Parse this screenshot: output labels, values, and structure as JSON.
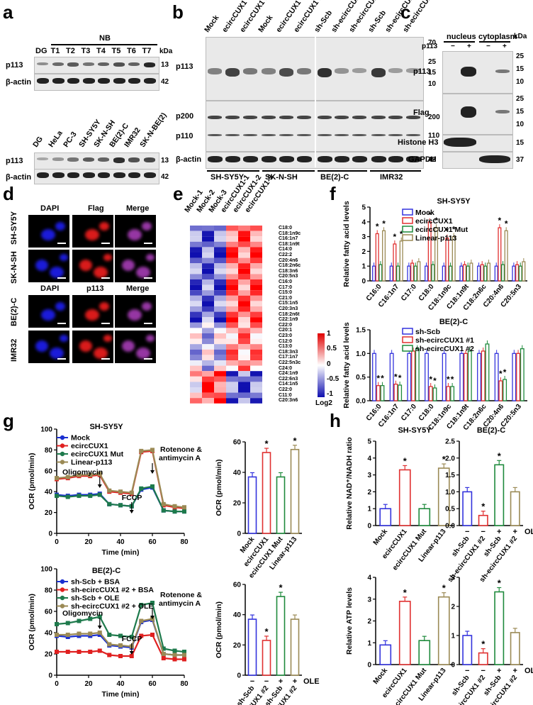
{
  "panels": {
    "a": {
      "label": "a",
      "top": {
        "group_label": "NB",
        "lanes": [
          "DG",
          "T1",
          "T2",
          "T3",
          "T4",
          "T5",
          "T6",
          "T7"
        ],
        "kda_unit": "kDa",
        "rows": [
          {
            "name": "p113",
            "kda": "13"
          },
          {
            "name": "β-actin",
            "kda": "42"
          }
        ],
        "p113_levels": [
          0.35,
          0.55,
          0.65,
          0.5,
          0.6,
          0.7,
          0.6,
          0.95
        ]
      },
      "bottom": {
        "lanes": [
          "DG",
          "HeLa",
          "PC-3",
          "SH-SY5Y",
          "SK-N-SH",
          "BE(2)-C",
          "IMR32",
          "SK-N-BE(2)"
        ],
        "rows": [
          {
            "name": "p113",
            "kda": "13"
          },
          {
            "name": "β-actin",
            "kda": "42"
          }
        ],
        "p113_levels": [
          0.2,
          0.3,
          0.5,
          0.65,
          0.6,
          0.9,
          0.7,
          0.75
        ]
      }
    },
    "b": {
      "label": "b",
      "lanes": [
        "Mock",
        "ecircCUX1",
        "ecircCUX1 Mut",
        "Mock",
        "ecircCUX1",
        "ecircCUX1 Mut",
        "sh-Scb",
        "sh-ecircCUX1 #1",
        "sh-ecircCUX1 #2",
        "sh-Scb",
        "sh-ecircCUX1 #1",
        "sh-ecircCUX1 #2"
      ],
      "rows": [
        "p113",
        "p200",
        "p110",
        "β-actin"
      ],
      "markers": [
        "70",
        "25",
        "15",
        "10",
        "200",
        "110",
        "42"
      ],
      "cell_lines": [
        "SH-SY5Y",
        "SK-N-SH",
        "BE(2)-C",
        "IMR32"
      ],
      "p113_levels": [
        0.45,
        0.8,
        0.5,
        0.45,
        0.75,
        0.5,
        0.9,
        0.35,
        0.3,
        0.85,
        0.3,
        0.3
      ]
    },
    "c": {
      "label": "c",
      "fractions": [
        "nucleus",
        "cytoplasm"
      ],
      "p113_row": "p113",
      "signs": [
        "−",
        "+",
        "−",
        "+"
      ],
      "kda_unit": "kDa",
      "rows": [
        "p113",
        "Flag",
        "Histone H3",
        "GAPDH"
      ],
      "markers": [
        "25",
        "15",
        "10",
        "25",
        "15",
        "10",
        "15",
        "37"
      ]
    },
    "d": {
      "label": "d",
      "top_headers": [
        "DAPI",
        "Flag",
        "Merge"
      ],
      "bottom_headers": [
        "DAPI",
        "p113",
        "Merge"
      ],
      "rows": [
        "SH-SY5Y",
        "SK-N-SH",
        "BE(2)-C",
        "IMR32"
      ]
    },
    "e": {
      "label": "e",
      "columns": [
        "Mock-1",
        "Mock-2",
        "Mock-3",
        "ecircCUX1-1",
        "ecircCUX1-2",
        "ecircCUX1-3"
      ],
      "rows": [
        "C18:0",
        "C18:1n9c",
        "C16:1n7",
        "C18:1n9t",
        "C14:0",
        "C22:2",
        "C20:4n6",
        "C18:2n6c",
        "C18:3n6",
        "C20:5n3",
        "C16:0",
        "C17:0",
        "C15:0",
        "C21:0",
        "C15:1n5",
        "C20:3n3",
        "C18:2n6t",
        "C22:1n9",
        "C22:0",
        "C20:1",
        "C23:0",
        "C12:0",
        "C13:0",
        "C18:3n3",
        "C17:1n7",
        "C22:5n3c",
        "C24:0",
        "C24:1n9",
        "C22:6n3",
        "C14:1n5",
        "C22:0",
        "C11:0",
        "C20:3n6"
      ],
      "legend_ticks": [
        "1",
        "0.5",
        "0",
        "-0.5",
        "-1"
      ],
      "legend_title": "Log2"
    },
    "f": {
      "label": "f"
    },
    "g": {
      "label": "g"
    },
    "h": {
      "label": "h"
    }
  },
  "chart_data": [
    {
      "id": "f-top",
      "type": "bar",
      "title": "SH-SY5Y",
      "ylabel": "Relative fatty acid levels",
      "ylim": [
        0,
        5
      ],
      "yticks": [
        "0",
        "1",
        "2",
        "3",
        "4",
        "5"
      ],
      "categories": [
        "C16:0",
        "C16:1n7",
        "C17:0",
        "C18:0",
        "C18:1n9c",
        "C18:1n9t",
        "C18:2n6c",
        "C20:4n6",
        "C20:5n3"
      ],
      "series": [
        {
          "name": "Mock",
          "color": "#3333dd",
          "values": [
            1,
            1,
            1,
            1,
            1,
            1,
            1,
            1,
            1
          ]
        },
        {
          "name": "ecircCUX1",
          "color": "#e03030",
          "values": [
            3.2,
            2.5,
            1.2,
            4.0,
            2.9,
            1.1,
            1.1,
            3.6,
            1.1
          ]
        },
        {
          "name": "ecircCUX1 Mut",
          "color": "#1e8a3c",
          "values": [
            1.1,
            1.0,
            1.0,
            1.1,
            1.0,
            1.0,
            1.0,
            1.1,
            1.0
          ]
        },
        {
          "name": "Linear-p113",
          "color": "#9b8a55",
          "values": [
            3.4,
            2.7,
            1.3,
            3.6,
            3.0,
            1.2,
            1.2,
            3.4,
            1.3
          ]
        }
      ],
      "stars": "*"
    },
    {
      "id": "f-bottom",
      "type": "bar",
      "title": "BE(2)-C",
      "ylabel": "Relative fatty acid levels",
      "ylim": [
        0,
        1.5
      ],
      "yticks": [
        "0.0",
        "0.5",
        "1.0",
        "1.5"
      ],
      "categories": [
        "C16:0",
        "C16:1n7",
        "C17:0",
        "C18:0",
        "C18:1n9c",
        "C18:1n9t",
        "C18:2n6c",
        "C20:4n6",
        "C20:5n3"
      ],
      "series": [
        {
          "name": "sh-Scb",
          "color": "#3333dd",
          "values": [
            1,
            1,
            1,
            1,
            1,
            1,
            1,
            1,
            1
          ]
        },
        {
          "name": "sh-ecircCUX1 #1",
          "color": "#e03030",
          "values": [
            0.32,
            0.35,
            1.05,
            0.3,
            0.3,
            1.0,
            1.05,
            0.42,
            1.0
          ]
        },
        {
          "name": "sh-ecircCUX1 #2",
          "color": "#1e8a3c",
          "values": [
            0.32,
            0.33,
            1.1,
            0.27,
            0.3,
            1.05,
            1.2,
            0.45,
            1.1
          ]
        }
      ],
      "stars": "*"
    },
    {
      "id": "g-top-line",
      "type": "line",
      "title": "SH-SY5Y",
      "xlabel": "Time (min)",
      "ylabel": "OCR (pmol/min)",
      "xlim": [
        0,
        80
      ],
      "ylim": [
        0,
        100
      ],
      "xticks": [
        "0",
        "20",
        "40",
        "60",
        "80"
      ],
      "yticks": [
        "0",
        "20",
        "40",
        "60",
        "80",
        "100"
      ],
      "x": [
        0,
        7,
        14,
        21,
        27,
        33,
        40,
        47,
        53,
        60,
        67,
        74,
        80
      ],
      "series": [
        {
          "name": "Mock",
          "color": "#1a2fd0",
          "values": [
            37,
            36,
            37,
            37,
            38,
            28,
            27,
            26,
            42,
            44,
            22,
            21,
            21
          ]
        },
        {
          "name": "ecircCUX1",
          "color": "#e02020",
          "values": [
            52,
            53,
            55,
            55,
            56,
            40,
            39,
            38,
            78,
            79,
            27,
            25,
            24
          ]
        },
        {
          "name": "ecircCUX1 Mut",
          "color": "#1e7a4c",
          "values": [
            36,
            35,
            36,
            36,
            37,
            28,
            27,
            26,
            43,
            45,
            22,
            21,
            21
          ]
        },
        {
          "name": "Linear-p113",
          "color": "#9b8a55",
          "values": [
            53,
            54,
            56,
            56,
            57,
            41,
            40,
            39,
            79,
            80,
            28,
            26,
            25
          ]
        }
      ],
      "annotations": [
        "Oligomycin",
        "FCCP",
        "Rotenone &",
        "antimycin A"
      ]
    },
    {
      "id": "g-top-bar",
      "type": "bar",
      "ylabel": "OCR (pmol/min)",
      "ylim": [
        0,
        60
      ],
      "yticks": [
        "0",
        "20",
        "40",
        "60"
      ],
      "categories": [
        "Mock",
        "ecircCUX1",
        "ecircCUX1 Mut",
        "Linear-p113"
      ],
      "values": [
        37,
        53,
        37,
        55
      ],
      "colors": [
        "#3333dd",
        "#e03030",
        "#1e8a3c",
        "#9b8a55"
      ],
      "stars": [
        false,
        true,
        false,
        true
      ]
    },
    {
      "id": "g-bottom-line",
      "type": "line",
      "title": "BE(2)-C",
      "xlabel": "Time (min)",
      "ylabel": "OCR (pmol/min)",
      "xlim": [
        0,
        80
      ],
      "ylim": [
        0,
        100
      ],
      "xticks": [
        "0",
        "20",
        "40",
        "60",
        "80"
      ],
      "yticks": [
        "0",
        "20",
        "40",
        "60",
        "80",
        "100"
      ],
      "x": [
        0,
        7,
        14,
        21,
        27,
        33,
        40,
        47,
        53,
        60,
        67,
        74,
        80
      ],
      "series": [
        {
          "name": "sh-Scb + BSA",
          "color": "#1a2fd0",
          "values": [
            37,
            36,
            37,
            37,
            38,
            28,
            27,
            26,
            50,
            52,
            20,
            19,
            19
          ]
        },
        {
          "name": "sh-ecircCUX1 #2 + BSA",
          "color": "#e02020",
          "values": [
            22,
            22,
            22,
            22,
            23,
            19,
            18,
            18,
            37,
            38,
            16,
            15,
            15
          ]
        },
        {
          "name": "sh-Scb + OLE",
          "color": "#1e7a4c",
          "values": [
            48,
            49,
            51,
            53,
            55,
            38,
            37,
            36,
            66,
            68,
            25,
            23,
            22
          ]
        },
        {
          "name": "sh-ecircCUX1 #2 + OLE",
          "color": "#9b8a55",
          "values": [
            38,
            38,
            39,
            39,
            40,
            29,
            28,
            27,
            51,
            53,
            20,
            19,
            19
          ]
        }
      ],
      "annotations": [
        "Oligomycin",
        "FCCP",
        "Rotenone &",
        "antimycin A"
      ]
    },
    {
      "id": "g-bottom-bar",
      "type": "bar",
      "ylabel": "OCR (pmol/min)",
      "ylim": [
        0,
        60
      ],
      "yticks": [
        "0",
        "20",
        "40",
        "60"
      ],
      "categories": [
        "sh-Scb",
        "sh-ecircCUX1 #2",
        "sh-Scb",
        "sh-ecircCUX1 #2"
      ],
      "signs": [
        "−",
        "−",
        "+",
        "+"
      ],
      "sign_label": "OLE",
      "values": [
        37,
        23,
        52,
        37
      ],
      "colors": [
        "#3333dd",
        "#e03030",
        "#1e8a3c",
        "#9b8a55"
      ],
      "stars": [
        false,
        true,
        true,
        false
      ]
    },
    {
      "id": "h-top-left",
      "type": "bar",
      "title": "SH-SY5Y",
      "ylabel": "Relative NAD⁺/NADH ratio",
      "ylim": [
        0,
        5
      ],
      "yticks": [
        "0",
        "1",
        "2",
        "3",
        "4",
        "5"
      ],
      "categories": [
        "Mock",
        "ecircCUX1",
        "ecircCUX1 Mut",
        "Linear-p113"
      ],
      "values": [
        1.0,
        3.3,
        1.0,
        3.4
      ],
      "colors": [
        "#3333dd",
        "#e03030",
        "#1e8a3c",
        "#9b8a55"
      ],
      "stars": [
        false,
        true,
        false,
        true
      ]
    },
    {
      "id": "h-top-right",
      "type": "bar",
      "title": "BE(2)-C",
      "ylim": [
        0,
        2.5
      ],
      "yticks": [
        "0.0",
        "0.5",
        "1.0",
        "1.5",
        "2.0",
        "2.5"
      ],
      "categories": [
        "sh-Scb",
        "sh-ecircCUX1 #2",
        "sh-Scb",
        "sh-ecircCUX1 #2"
      ],
      "signs": [
        "−",
        "−",
        "+",
        "+"
      ],
      "sign_label": "OLE",
      "values": [
        1.0,
        0.3,
        1.8,
        1.0
      ],
      "colors": [
        "#3333dd",
        "#e03030",
        "#1e8a3c",
        "#9b8a55"
      ],
      "stars": [
        false,
        true,
        true,
        false
      ]
    },
    {
      "id": "h-bottom-left",
      "type": "bar",
      "ylabel": "Relative ATP levels",
      "ylim": [
        0,
        4
      ],
      "yticks": [
        "0",
        "1",
        "2",
        "3",
        "4"
      ],
      "categories": [
        "Mock",
        "ecircCUX1",
        "ecircCUX1 Mut",
        "Linear-p113"
      ],
      "values": [
        0.9,
        2.9,
        1.1,
        3.1
      ],
      "colors": [
        "#3333dd",
        "#e03030",
        "#1e8a3c",
        "#9b8a55"
      ],
      "stars": [
        false,
        true,
        false,
        true
      ]
    },
    {
      "id": "h-bottom-right",
      "type": "bar",
      "ylim": [
        0,
        3
      ],
      "yticks": [
        "0",
        "1",
        "2",
        "3"
      ],
      "categories": [
        "sh-Scb",
        "sh-ecircCUX1 #2",
        "sh-Scb",
        "sh-ecircCUX1 #2"
      ],
      "signs": [
        "−",
        "−",
        "+",
        "+"
      ],
      "sign_label": "OLE",
      "values": [
        1.0,
        0.4,
        2.5,
        1.1
      ],
      "colors": [
        "#3333dd",
        "#e03030",
        "#1e8a3c",
        "#9b8a55"
      ],
      "stars": [
        false,
        true,
        true,
        false
      ]
    }
  ]
}
